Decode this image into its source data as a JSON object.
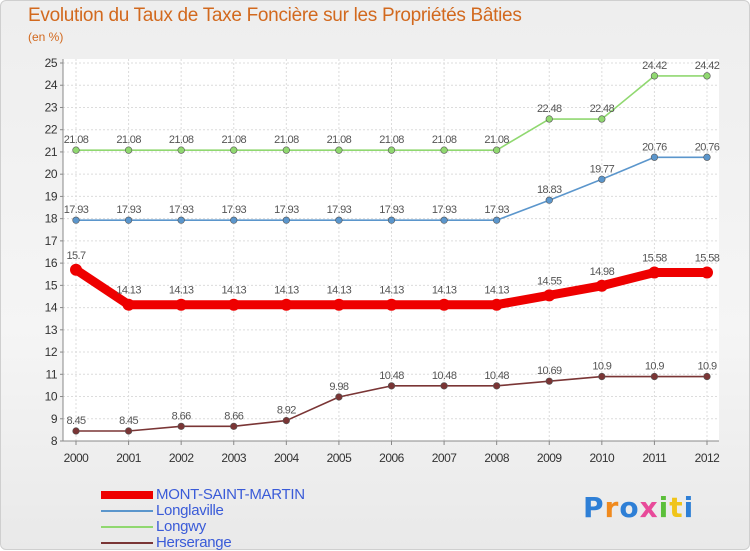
{
  "chart_data": {
    "type": "line",
    "title": "Evolution du Taux de Taxe Foncière sur les Propriétés Bâties",
    "unit": "(en %)",
    "x": [
      2000,
      2001,
      2002,
      2003,
      2004,
      2005,
      2006,
      2007,
      2008,
      2009,
      2010,
      2011,
      2012
    ],
    "ylim": [
      8,
      25
    ],
    "yticks": [
      8,
      9,
      10,
      11,
      12,
      13,
      14,
      15,
      16,
      17,
      18,
      19,
      20,
      21,
      22,
      23,
      24,
      25
    ],
    "grid": true,
    "legend_position": "bottom-left",
    "series": [
      {
        "name": "MONT-SAINT-MARTIN",
        "color": "#ee0000",
        "values": [
          15.7,
          14.13,
          14.13,
          14.13,
          14.13,
          14.13,
          14.13,
          14.13,
          14.13,
          14.55,
          14.98,
          15.58,
          15.58
        ],
        "labels": [
          "15.7",
          "14.13",
          "14.13",
          "14.13",
          "14.13",
          "14.13",
          "14.13",
          "14.13",
          "14.13",
          "14.55",
          "14.98",
          "15.58",
          "15.58"
        ]
      },
      {
        "name": "Longlaville",
        "color": "#5b96cc",
        "values": [
          17.93,
          17.93,
          17.93,
          17.93,
          17.93,
          17.93,
          17.93,
          17.93,
          17.93,
          18.83,
          19.77,
          20.76,
          20.76
        ],
        "labels": [
          "17.93",
          "17.93",
          "17.93",
          "17.93",
          "17.93",
          "17.93",
          "17.93",
          "17.93",
          "17.93",
          "18.83",
          "19.77",
          "20.76",
          "20.76"
        ]
      },
      {
        "name": "Longwy",
        "color": "#90d870",
        "values": [
          21.08,
          21.08,
          21.08,
          21.08,
          21.08,
          21.08,
          21.08,
          21.08,
          21.08,
          22.48,
          22.48,
          24.42,
          24.42
        ],
        "labels": [
          "21.08",
          "21.08",
          "21.08",
          "21.08",
          "21.08",
          "21.08",
          "21.08",
          "21.08",
          "21.08",
          "22.48",
          "22.48",
          "24.42",
          "24.42"
        ]
      },
      {
        "name": "Herserange",
        "color": "#7a3535",
        "values": [
          8.45,
          8.45,
          8.66,
          8.66,
          8.92,
          9.98,
          10.48,
          10.48,
          10.48,
          10.69,
          10.9,
          10.9,
          10.9
        ],
        "labels": [
          "8.45",
          "8.45",
          "8.66",
          "8.66",
          "8.92",
          "9.98",
          "10.48",
          "10.48",
          "10.48",
          "10.69",
          "10.9",
          "10.9",
          "10.9"
        ]
      }
    ]
  },
  "logo": {
    "text": "Proxiti"
  }
}
